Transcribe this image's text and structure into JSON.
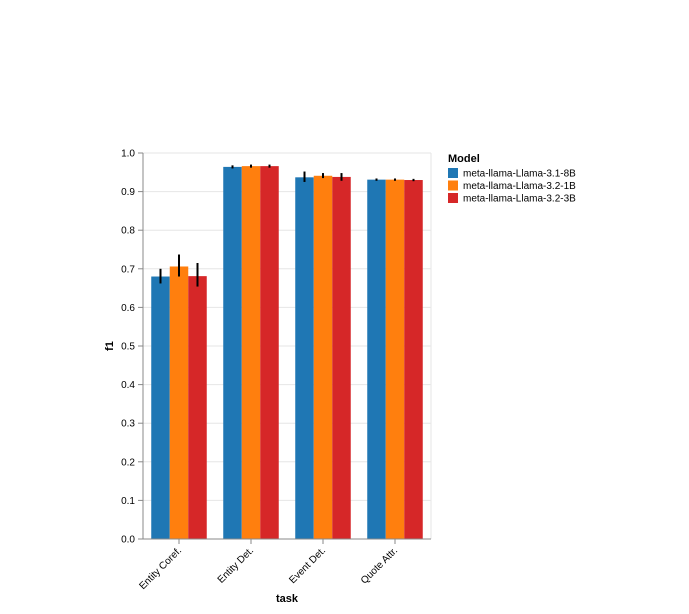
{
  "chart_data": {
    "type": "bar",
    "title": "",
    "xlabel": "task",
    "ylabel": "f1",
    "ylim": [
      0,
      1.0
    ],
    "yticks": [
      "0.0",
      "0.1",
      "0.2",
      "0.3",
      "0.4",
      "0.5",
      "0.6",
      "0.7",
      "0.8",
      "0.9",
      "1.0"
    ],
    "grid": true,
    "legend_title": "Model",
    "legend_position": "top-right",
    "categories": [
      "Entity Coref.",
      "Entity Det.",
      "Event Det.",
      "Quote Attr."
    ],
    "series": [
      {
        "name": "meta-llama-Llama-3.1-8B",
        "color": "#1f77b4",
        "values": [
          0.68,
          0.964,
          0.937,
          0.931
        ],
        "error_low": [
          0.662,
          0.96,
          0.925,
          0.928
        ],
        "error_high": [
          0.7,
          0.968,
          0.952,
          0.934
        ]
      },
      {
        "name": "meta-llama-Llama-3.2-1B",
        "color": "#ff7f0e",
        "values": [
          0.706,
          0.966,
          0.941,
          0.931
        ],
        "error_low": [
          0.68,
          0.962,
          0.935,
          0.928
        ],
        "error_high": [
          0.737,
          0.97,
          0.948,
          0.934
        ]
      },
      {
        "name": "meta-llama-Llama-3.2-3B",
        "color": "#d62728",
        "values": [
          0.681,
          0.966,
          0.938,
          0.93
        ],
        "error_low": [
          0.654,
          0.962,
          0.928,
          0.927
        ],
        "error_high": [
          0.715,
          0.97,
          0.948,
          0.933
        ]
      }
    ]
  }
}
